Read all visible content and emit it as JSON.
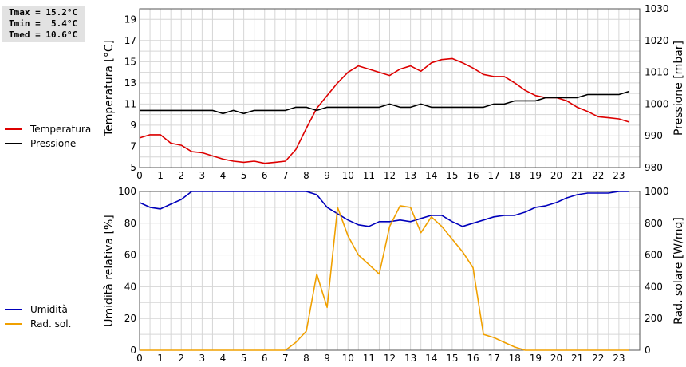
{
  "stats": {
    "tmax": "Tmax = 15.2°C",
    "tmin": "Tmin =  5.4°C",
    "tmed": "Tmed = 10.6°C"
  },
  "chart_data": [
    {
      "type": "line",
      "title": "",
      "xlabel": "",
      "x": [
        0,
        0.5,
        1,
        1.5,
        2,
        2.5,
        3,
        3.5,
        4,
        4.5,
        5,
        5.5,
        6,
        6.5,
        7,
        7.5,
        8,
        8.5,
        9,
        9.5,
        10,
        10.5,
        11,
        11.5,
        12,
        12.5,
        13,
        13.5,
        14,
        14.5,
        15,
        15.5,
        16,
        16.5,
        17,
        17.5,
        18,
        18.5,
        19,
        19.5,
        20,
        20.5,
        21,
        21.5,
        22,
        22.5,
        23,
        23.5
      ],
      "xlim": [
        0,
        24
      ],
      "xticks": [
        "0",
        "1",
        "2",
        "3",
        "4",
        "5",
        "6",
        "7",
        "8",
        "9",
        "10",
        "11",
        "12",
        "13",
        "14",
        "15",
        "16",
        "17",
        "18",
        "19",
        "20",
        "21",
        "22",
        "23"
      ],
      "y_left": {
        "label": "Temperatura [°C]",
        "lim": [
          5,
          20
        ],
        "ticks": [
          "5",
          "7",
          "9",
          "11",
          "13",
          "15",
          "17",
          "19"
        ]
      },
      "y_right": {
        "label": "Pressione [mbar]",
        "lim": [
          980,
          1030
        ],
        "ticks": [
          "980",
          "990",
          "1000",
          "1010",
          "1020",
          "1030"
        ]
      },
      "grid": true,
      "legend_position": "left-outside",
      "series": [
        {
          "name": "Temperatura",
          "axis": "left",
          "color": "#dd0000",
          "values": [
            7.8,
            8.1,
            8.1,
            7.3,
            7.1,
            6.5,
            6.4,
            6.1,
            5.8,
            5.6,
            5.5,
            5.6,
            5.4,
            5.5,
            5.6,
            6.7,
            8.7,
            10.6,
            11.8,
            13.0,
            14.0,
            14.6,
            14.3,
            14.0,
            13.7,
            14.3,
            14.6,
            14.1,
            14.9,
            15.2,
            15.3,
            14.9,
            14.4,
            13.8,
            13.6,
            13.6,
            13.0,
            12.3,
            11.8,
            11.6,
            11.6,
            11.3,
            10.7,
            10.3,
            9.8,
            9.7,
            9.6,
            9.3
          ]
        },
        {
          "name": "Pressione",
          "axis": "right",
          "color": "#000000",
          "values": [
            998,
            998,
            998,
            998,
            998,
            998,
            998,
            998,
            997,
            998,
            997,
            998,
            998,
            998,
            998,
            999,
            999,
            998,
            999,
            999,
            999,
            999,
            999,
            999,
            1000,
            999,
            999,
            1000,
            999,
            999,
            999,
            999,
            999,
            999,
            1000,
            1000,
            1001,
            1001,
            1001,
            1002,
            1002,
            1002,
            1002,
            1003,
            1003,
            1003,
            1003,
            1004
          ]
        }
      ]
    },
    {
      "type": "line",
      "title": "",
      "xlabel": "",
      "x": [
        0,
        0.5,
        1,
        1.5,
        2,
        2.5,
        3,
        3.5,
        4,
        4.5,
        5,
        5.5,
        6,
        6.5,
        7,
        7.5,
        8,
        8.5,
        9,
        9.5,
        10,
        10.5,
        11,
        11.5,
        12,
        12.5,
        13,
        13.5,
        14,
        14.5,
        15,
        15.5,
        16,
        16.5,
        17,
        17.5,
        18,
        18.5,
        19,
        19.5,
        20,
        20.5,
        21,
        21.5,
        22,
        22.5,
        23,
        23.5
      ],
      "xlim": [
        0,
        24
      ],
      "xticks": [
        "0",
        "1",
        "2",
        "3",
        "4",
        "5",
        "6",
        "7",
        "8",
        "9",
        "10",
        "11",
        "12",
        "13",
        "14",
        "15",
        "16",
        "17",
        "18",
        "19",
        "20",
        "21",
        "22",
        "23"
      ],
      "y_left": {
        "label": "Umidità relativa [%]",
        "lim": [
          0,
          100
        ],
        "ticks": [
          "0",
          "20",
          "40",
          "60",
          "80",
          "100"
        ]
      },
      "y_right": {
        "label": "Rad. solare [W/mq]",
        "lim": [
          0,
          1000
        ],
        "ticks": [
          "0",
          "200",
          "400",
          "600",
          "800",
          "1000"
        ]
      },
      "grid": true,
      "legend_position": "left-outside",
      "series": [
        {
          "name": "Umidità",
          "axis": "left",
          "color": "#0000bb",
          "values": [
            93,
            90,
            89,
            92,
            95,
            100,
            100,
            100,
            100,
            100,
            100,
            100,
            100,
            100,
            100,
            100,
            100,
            98,
            90,
            86,
            82,
            79,
            78,
            81,
            81,
            82,
            81,
            83,
            85,
            85,
            81,
            78,
            80,
            82,
            84,
            85,
            85,
            87,
            90,
            91,
            93,
            96,
            98,
            99,
            99,
            99,
            100,
            100
          ]
        },
        {
          "name": "Rad. sol.",
          "axis": "right",
          "color": "#f0a000",
          "values": [
            0,
            0,
            0,
            0,
            0,
            0,
            0,
            0,
            0,
            0,
            0,
            0,
            0,
            0,
            0,
            50,
            120,
            480,
            270,
            900,
            720,
            600,
            540,
            480,
            780,
            910,
            900,
            740,
            840,
            780,
            700,
            620,
            520,
            100,
            80,
            50,
            20,
            0,
            0,
            0,
            0,
            0,
            0,
            0,
            0,
            0,
            0,
            0
          ]
        }
      ]
    }
  ]
}
